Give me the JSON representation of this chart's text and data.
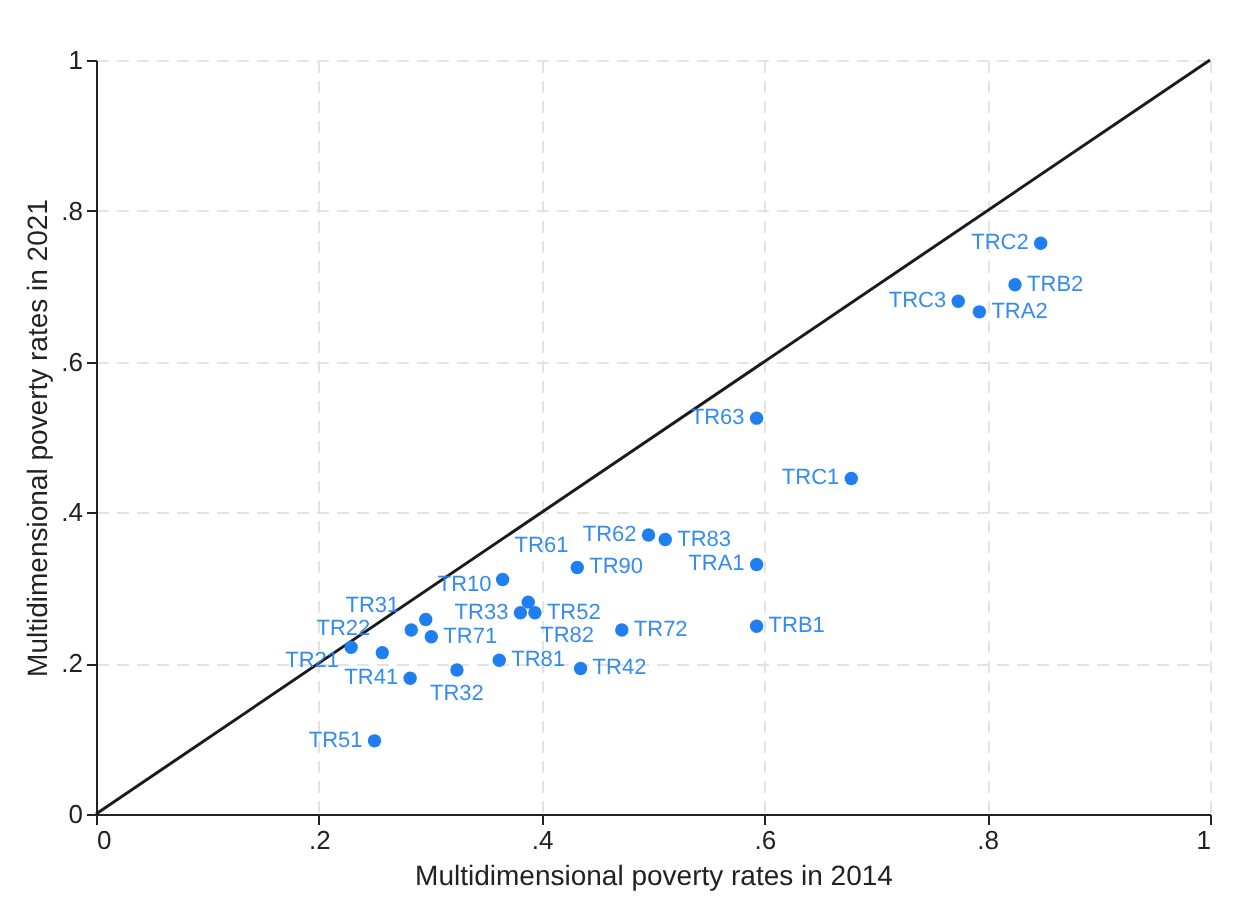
{
  "chart_data": {
    "type": "scatter",
    "xlabel": "Multidimensional poverty rates in 2014",
    "ylabel": "Multidimensional poverty rates in 2021",
    "xlim": [
      0,
      1
    ],
    "ylim": [
      0,
      1
    ],
    "xticks": [
      0,
      {
        "value": 0.2,
        "label": ".2"
      },
      {
        "value": 0.4,
        "label": ".4"
      },
      {
        "value": 0.6,
        "label": ".6"
      },
      {
        "value": 0.8,
        "label": ".8"
      },
      1
    ],
    "yticks": [
      0,
      {
        "value": 0.2,
        "label": ".2"
      },
      {
        "value": 0.4,
        "label": ".4"
      },
      {
        "value": 0.6,
        "label": ".6"
      },
      {
        "value": 0.8,
        "label": ".8"
      },
      1
    ],
    "grid": true,
    "marker": "circle",
    "series": [
      {
        "type": "line",
        "color": "#1a1a1a",
        "x": [
          0,
          1
        ],
        "values": [
          0,
          1
        ],
        "marker": "none"
      },
      {
        "type": "scatter",
        "color": "#1f7ff0",
        "x": [
          0.848,
          0.825,
          0.774,
          0.793,
          0.593,
          0.678,
          0.593,
          0.593,
          0.496,
          0.511,
          0.432,
          0.365,
          0.388,
          0.381,
          0.394,
          0.472,
          0.435,
          0.362,
          0.324,
          0.282,
          0.296,
          0.301,
          0.283,
          0.257,
          0.229,
          0.25
        ],
        "values": [
          0.757,
          0.702,
          0.68,
          0.666,
          0.525,
          0.445,
          0.331,
          0.249,
          0.37,
          0.364,
          0.327,
          0.311,
          0.281,
          0.267,
          0.267,
          0.244,
          0.193,
          0.204,
          0.191,
          0.18,
          0.258,
          0.235,
          0.244,
          0.214,
          0.221,
          0.097
        ],
        "value_labels": [
          "TRC2",
          "TRB2",
          "TRC3",
          "TRA2",
          "TR63",
          "TRC1",
          "TRA1",
          "TRB1",
          "TR62",
          "TR83",
          "TR90",
          "TR61",
          "TR82",
          "TR33",
          "TR52",
          "TR72",
          "TR42",
          "TR81",
          "TR32",
          "TR41",
          "TR10",
          "TR71",
          "TR31",
          "TR22",
          "TR21",
          "TR51"
        ]
      }
    ]
  }
}
